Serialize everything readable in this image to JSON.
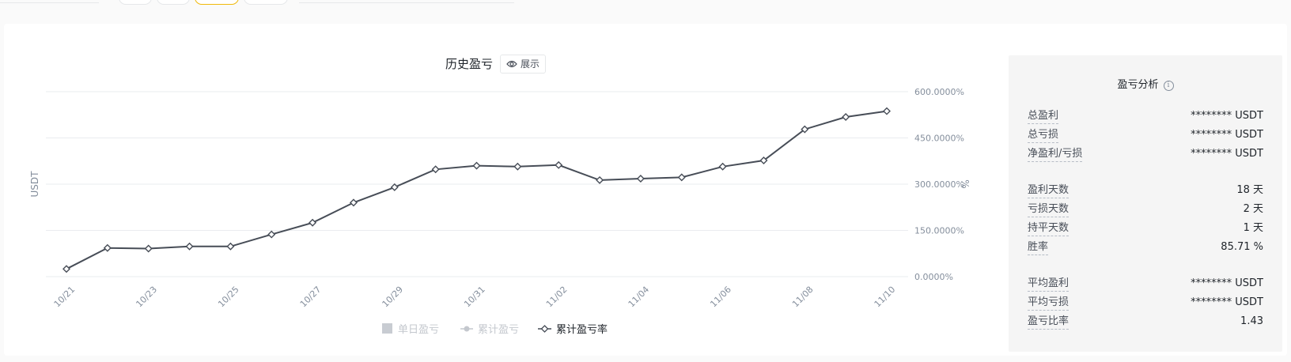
{
  "chart_data": {
    "type": "line",
    "title": "历史盈亏",
    "show_button": "展示",
    "y_left_label": "USDT",
    "y_right_label": "%",
    "y_right_ticks": [
      "600.0000%",
      "450.0000%",
      "300.0000%",
      "150.0000%",
      "0.0000%"
    ],
    "y_right_tick_values": [
      600,
      450,
      300,
      150,
      0
    ],
    "ylim": [
      0,
      600
    ],
    "x_tick_labels": [
      "10/21",
      "10/23",
      "10/25",
      "10/27",
      "10/29",
      "10/31",
      "11/02",
      "11/04",
      "11/06",
      "11/08",
      "11/10"
    ],
    "x": [
      "10/21",
      "10/22",
      "10/23",
      "10/24",
      "10/25",
      "10/26",
      "10/27",
      "10/28",
      "10/29",
      "10/30",
      "10/31",
      "11/01",
      "11/02",
      "11/03",
      "11/04",
      "11/05",
      "11/06",
      "11/07",
      "11/08",
      "11/09",
      "11/10"
    ],
    "series": [
      {
        "name": "累计盈亏率",
        "values": [
          25,
          93,
          91,
          98,
          98,
          137,
          175,
          240,
          290,
          348,
          360,
          357,
          362,
          313,
          318,
          322,
          357,
          377,
          478,
          518,
          537
        ]
      }
    ],
    "legend": [
      "单日盈亏",
      "累计盈亏",
      "累计盈亏率"
    ],
    "grid": true
  },
  "colors": {
    "line": "#474d57",
    "grid": "#eaecef",
    "axis_text": "#848e9c",
    "legend_inactive": "#c4c8ce",
    "accent": "#f0b90b"
  },
  "analysis": {
    "title": "盈亏分析",
    "info_icon": "info-icon",
    "groups": [
      [
        {
          "label": "总盈利",
          "value": "******** USDT"
        },
        {
          "label": "总亏损",
          "value": "******** USDT"
        },
        {
          "label": "净盈利/亏损",
          "value": "******** USDT"
        }
      ],
      [
        {
          "label": "盈利天数",
          "value": "18 天"
        },
        {
          "label": "亏损天数",
          "value": "2 天"
        },
        {
          "label": "持平天数",
          "value": "1 天"
        },
        {
          "label": "胜率",
          "value": "85.71 %"
        }
      ],
      [
        {
          "label": "平均盈利",
          "value": "******** USDT"
        },
        {
          "label": "平均亏损",
          "value": "******** USDT"
        },
        {
          "label": "盈亏比率",
          "value": "1.43"
        }
      ]
    ]
  }
}
